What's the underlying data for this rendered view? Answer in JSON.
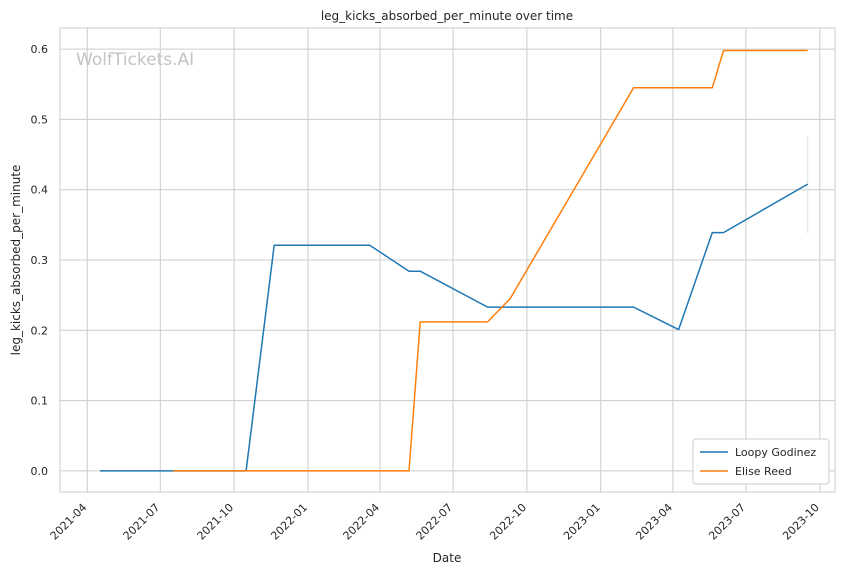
{
  "chart_data": {
    "type": "line",
    "title": "leg_kicks_absorbed_per_minute over time",
    "xlabel": "Date",
    "ylabel": "leg_kicks_absorbed_per_minute",
    "watermark": "WolfTickets.AI",
    "ylim": [
      -0.03,
      0.63
    ],
    "xlim": [
      "2021-02-26",
      "2023-10-20"
    ],
    "grid": true,
    "legend_position": "bottom-right",
    "x_ticks": [
      "2021-04-01",
      "2021-07-01",
      "2021-10-01",
      "2022-01-01",
      "2022-04-01",
      "2022-07-01",
      "2022-10-01",
      "2023-01-01",
      "2023-04-01",
      "2023-07-01",
      "2023-10-01"
    ],
    "x_tick_labels": [
      "2021-04",
      "2021-07",
      "2021-10",
      "2022-01",
      "2022-04",
      "2022-07",
      "2022-10",
      "2023-01",
      "2023-04",
      "2023-07",
      "2023-10"
    ],
    "y_ticks": [
      0.0,
      0.1,
      0.2,
      0.3,
      0.4,
      0.5,
      0.6
    ],
    "y_tick_labels": [
      "0.0",
      "0.1",
      "0.2",
      "0.3",
      "0.4",
      "0.5",
      "0.6"
    ],
    "series": [
      {
        "name": "Loopy Godinez",
        "color": "#1f77b4",
        "points": [
          [
            "2021-04-17",
            0.0
          ],
          [
            "2021-10-16",
            0.0
          ],
          [
            "2021-11-20",
            0.321
          ],
          [
            "2022-03-19",
            0.321
          ],
          [
            "2022-05-07",
            0.284
          ],
          [
            "2022-05-21",
            0.284
          ],
          [
            "2022-08-13",
            0.233
          ],
          [
            "2023-02-11",
            0.233
          ],
          [
            "2023-04-08",
            0.201
          ],
          [
            "2023-05-20",
            0.339
          ],
          [
            "2023-06-03",
            0.339
          ],
          [
            "2023-09-16",
            0.408
          ]
        ]
      },
      {
        "name": "Elise Reed",
        "color": "#ff7f0e",
        "points": [
          [
            "2021-07-17",
            0.0
          ],
          [
            "2022-05-07",
            0.0
          ],
          [
            "2022-05-21",
            0.212
          ],
          [
            "2022-08-13",
            0.212
          ],
          [
            "2022-09-10",
            0.245
          ],
          [
            "2023-02-11",
            0.545
          ],
          [
            "2023-05-20",
            0.545
          ],
          [
            "2023-06-03",
            0.598
          ],
          [
            "2023-09-16",
            0.598
          ]
        ]
      }
    ],
    "error_bar": {
      "date": "2023-09-16",
      "low": 0.338,
      "high": 0.476
    }
  }
}
